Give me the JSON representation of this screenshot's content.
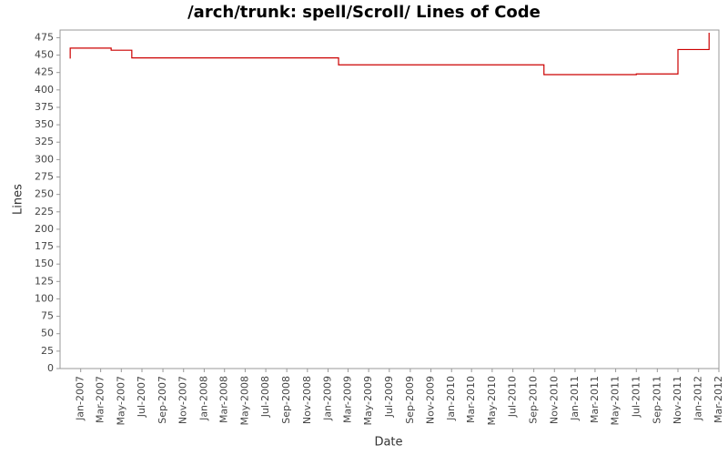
{
  "chart_data": {
    "type": "step",
    "title": "/arch/trunk: spell/Scroll/ Lines of Code",
    "x_label": "Date",
    "y_label": "Lines",
    "x": [
      "Dec-2006",
      "Dec-2006",
      "Apr-2007",
      "Jun-2007",
      "Feb-2009",
      "Oct-2010",
      "Jul-2011",
      "Nov-2011",
      "Feb-2012"
    ],
    "series": [
      {
        "name": "Lines",
        "color": "#cc0000",
        "values": [
          445,
          460,
          457,
          446,
          436,
          422,
          423,
          458,
          482
        ]
      }
    ],
    "xlim": [
      "Nov-2006",
      "Mar-2012"
    ],
    "xticks": [
      "Jan-2007",
      "Mar-2007",
      "May-2007",
      "Jul-2007",
      "Sep-2007",
      "Nov-2007",
      "Jan-2008",
      "Mar-2008",
      "May-2008",
      "Jul-2008",
      "Sep-2008",
      "Nov-2008",
      "Jan-2009",
      "Mar-2009",
      "May-2009",
      "Jul-2009",
      "Sep-2009",
      "Nov-2009",
      "Jan-2010",
      "Mar-2010",
      "May-2010",
      "Jul-2010",
      "Sep-2010",
      "Nov-2010",
      "Jan-2011",
      "Mar-2011",
      "May-2011",
      "Jul-2011",
      "Sep-2011",
      "Nov-2011",
      "Jan-2012",
      "Mar-2012"
    ],
    "ylim": [
      0,
      486
    ],
    "yticks": [
      0,
      25,
      50,
      75,
      100,
      125,
      150,
      175,
      200,
      225,
      250,
      275,
      300,
      325,
      350,
      375,
      400,
      425,
      450,
      475
    ],
    "grid": false
  }
}
